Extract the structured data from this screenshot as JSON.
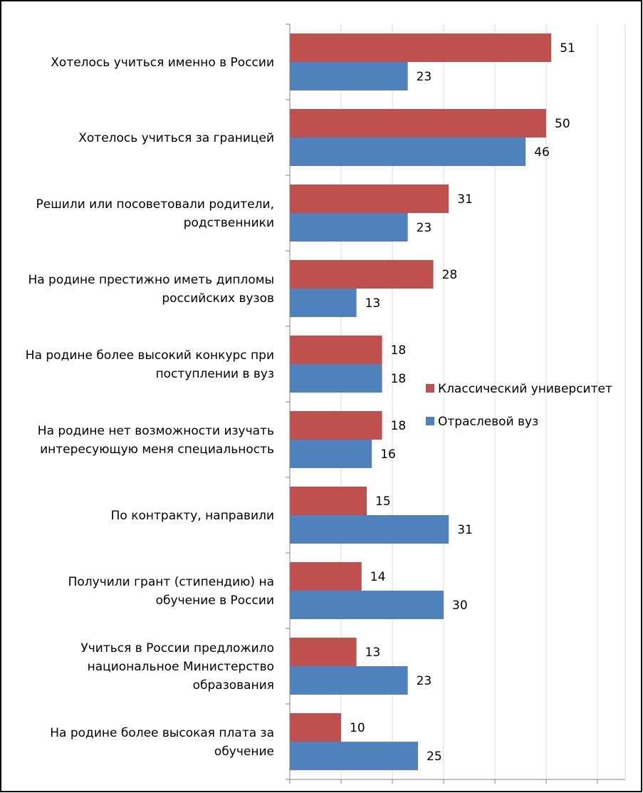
{
  "chart_data": {
    "type": "bar",
    "orientation": "horizontal",
    "categories": [
      [
        "Хотелось учиться именно в России"
      ],
      [
        "Хотелось учиться за границей"
      ],
      [
        "Решили или посоветовали родители,",
        "родственники"
      ],
      [
        "На родине  престижно иметь дипломы",
        "российских вузов"
      ],
      [
        "На родине  более высокий конкурс при",
        "поступлении в вуз"
      ],
      [
        "На родине  нет возможности изучать",
        "интересующую меня специальность"
      ],
      [
        "По контракту, направили"
      ],
      [
        "Получили грант (стипендию) на",
        "обучение в России"
      ],
      [
        "Учиться в России предложило",
        "национальное Министерство",
        "образования"
      ],
      [
        "На родине  более высокая плата за",
        "обучение"
      ]
    ],
    "series": [
      {
        "name": "Классический университет",
        "color": "#C0504D",
        "values": [
          51,
          50,
          31,
          28,
          18,
          18,
          15,
          14,
          13,
          10
        ]
      },
      {
        "name": "Отраслевой вуз",
        "color": "#4F81BD",
        "values": [
          23,
          46,
          23,
          13,
          18,
          16,
          31,
          30,
          23,
          25
        ]
      }
    ],
    "xlim": [
      0,
      65
    ],
    "x_gridline_step": 10,
    "grid": true,
    "tick_labels_visible": false,
    "legend_placement": "right-middle"
  }
}
